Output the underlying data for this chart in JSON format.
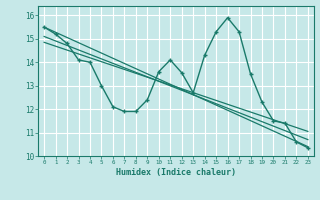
{
  "title": "",
  "xlabel": "Humidex (Indice chaleur)",
  "xlim": [
    -0.5,
    23.5
  ],
  "ylim": [
    10,
    16.4
  ],
  "xticks": [
    0,
    1,
    2,
    3,
    4,
    5,
    6,
    7,
    8,
    9,
    10,
    11,
    12,
    13,
    14,
    15,
    16,
    17,
    18,
    19,
    20,
    21,
    22,
    23
  ],
  "yticks": [
    10,
    11,
    12,
    13,
    14,
    15,
    16
  ],
  "bg_color": "#c6e8e8",
  "line_color": "#1a7a6a",
  "grid_color": "#ffffff",
  "main_x": [
    0,
    1,
    2,
    3,
    4,
    5,
    6,
    7,
    8,
    9,
    10,
    11,
    12,
    13,
    14,
    15,
    16,
    17,
    18,
    19,
    20,
    21,
    22,
    23
  ],
  "main_y": [
    15.5,
    15.2,
    14.8,
    14.1,
    14.0,
    13.0,
    12.1,
    11.9,
    11.9,
    12.4,
    13.6,
    14.1,
    13.55,
    12.7,
    14.3,
    15.3,
    15.9,
    15.3,
    13.5,
    12.3,
    11.5,
    11.4,
    10.6,
    10.35
  ],
  "trend1_x": [
    0,
    23
  ],
  "trend1_y": [
    15.5,
    10.4
  ],
  "trend2_x": [
    0,
    23
  ],
  "trend2_y": [
    15.1,
    10.7
  ],
  "trend3_x": [
    0,
    23
  ],
  "trend3_y": [
    14.85,
    11.05
  ]
}
